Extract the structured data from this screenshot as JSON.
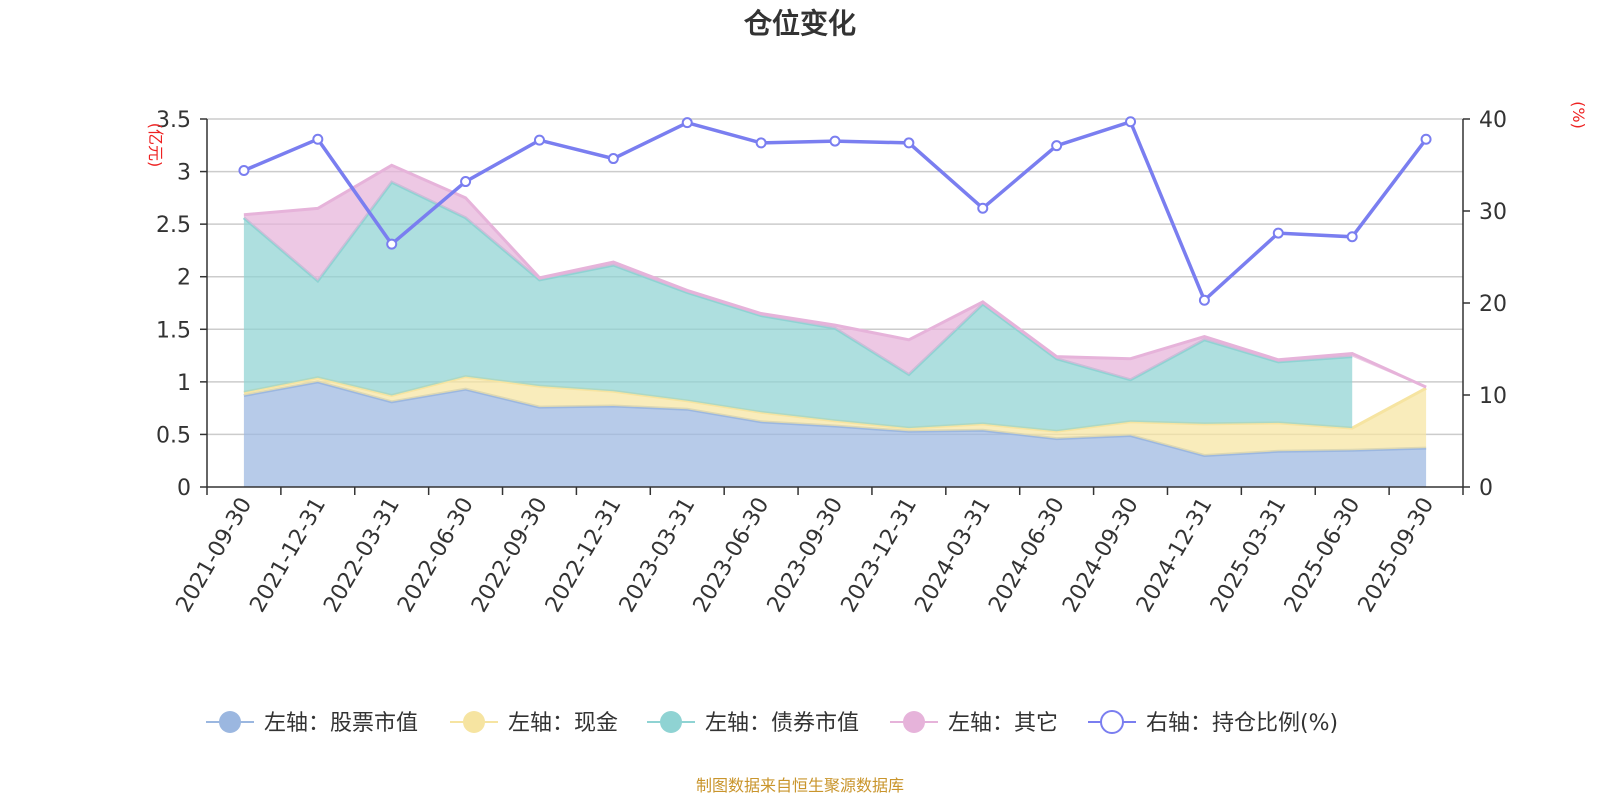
{
  "chart_data": {
    "type": "area",
    "title": "仓位变化",
    "source_note": "制图数据来自恒生聚源数据库",
    "left_axis": {
      "unit": "(亿元)",
      "ylim": [
        0,
        3.5
      ],
      "ticks": [
        "0",
        "0.5",
        "1",
        "1.5",
        "2",
        "2.5",
        "3",
        "3.5"
      ]
    },
    "right_axis": {
      "unit": "(%)",
      "ylim": [
        0,
        40
      ],
      "ticks": [
        "0",
        "10",
        "20",
        "30",
        "40"
      ]
    },
    "categories": [
      "2021-09-30",
      "2021-12-31",
      "2022-03-31",
      "2022-06-30",
      "2022-09-30",
      "2022-12-31",
      "2023-03-31",
      "2023-06-30",
      "2023-09-30",
      "2023-12-31",
      "2024-03-31",
      "2024-06-30",
      "2024-09-30",
      "2024-12-31",
      "2025-03-31",
      "2025-06-30",
      "2025-09-30"
    ],
    "series": [
      {
        "name": "左轴：股票市值",
        "axis": "left",
        "kind": "stacked-area",
        "color": "#9bb7e0",
        "values": [
          0.87,
          1.0,
          0.81,
          0.93,
          0.76,
          0.77,
          0.74,
          0.62,
          0.58,
          0.53,
          0.54,
          0.46,
          0.49,
          0.3,
          0.34,
          0.35,
          0.37
        ]
      },
      {
        "name": "左轴：现金",
        "axis": "left",
        "kind": "stacked-area",
        "color": "#f6e4a1",
        "values": [
          0.03,
          0.04,
          0.06,
          0.12,
          0.2,
          0.14,
          0.08,
          0.09,
          0.05,
          0.03,
          0.06,
          0.07,
          0.13,
          0.3,
          0.27,
          0.21,
          0.57
        ]
      },
      {
        "name": "左轴：债券市值",
        "axis": "left",
        "kind": "stacked-area",
        "color": "#8fd3d3",
        "values": [
          1.66,
          0.92,
          2.03,
          1.51,
          1.01,
          1.2,
          1.03,
          0.92,
          0.88,
          0.51,
          1.14,
          0.69,
          0.4,
          0.8,
          0.58,
          0.68,
          0.0
        ]
      },
      {
        "name": "左轴：其它",
        "axis": "left",
        "kind": "stacked-area",
        "color": "#e6b3da",
        "values": [
          0.03,
          0.69,
          0.16,
          0.19,
          0.02,
          0.03,
          0.02,
          0.02,
          0.03,
          0.33,
          0.02,
          0.02,
          0.2,
          0.03,
          0.02,
          0.03,
          0.01
        ]
      },
      {
        "name": "右轴：持仓比例(%)",
        "axis": "right",
        "kind": "line",
        "color": "#7a7ef0",
        "values": [
          34.4,
          37.8,
          26.4,
          33.2,
          37.7,
          35.7,
          39.6,
          37.4,
          37.6,
          37.4,
          30.3,
          37.1,
          39.7,
          20.3,
          27.6,
          27.2,
          37.8
        ]
      }
    ]
  },
  "colors": {
    "axis_unit": "#ee2222",
    "source_note": "#c9952c",
    "grid": "#cccccc",
    "axis": "#333333"
  }
}
